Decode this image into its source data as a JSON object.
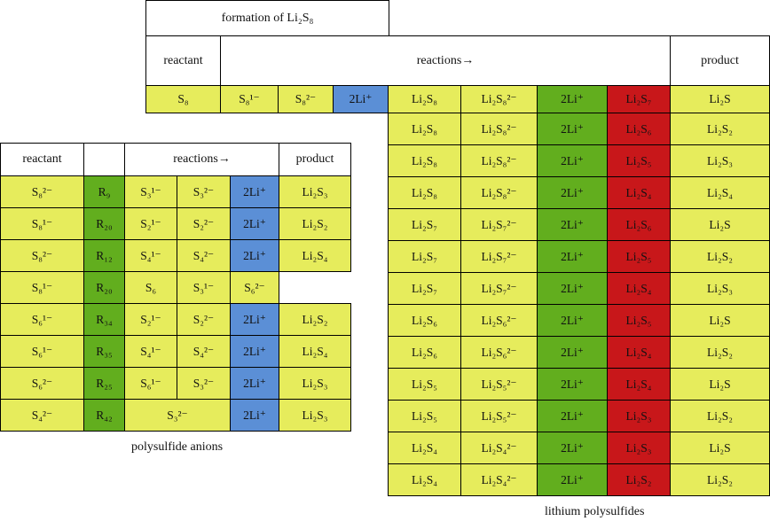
{
  "right_table": {
    "title": "formation of Li₂S₈",
    "headers": {
      "reactant": "reactant",
      "reactions": "reactions→",
      "product": "product"
    },
    "first_row": {
      "reactant": "S₈",
      "r1": "S₈¹⁻",
      "r2": "S₈²⁻",
      "r3": "2Li⁺",
      "r4": "Li₂S₈",
      "r5": "Li₂S₈²⁻",
      "r6": "2Li⁺",
      "r7": "Li₂S₇",
      "product": "Li₂S"
    },
    "rows": [
      {
        "c1": "Li₂S₈",
        "c2": "Li₂S₈²⁻",
        "c3": "2Li⁺",
        "c4": "Li₂S₆",
        "product": "Li₂S₂"
      },
      {
        "c1": "Li₂S₈",
        "c2": "Li₂S₈²⁻",
        "c3": "2Li⁺",
        "c4": "Li₂S₅",
        "product": "Li₂S₃"
      },
      {
        "c1": "Li₂S₈",
        "c2": "Li₂S₈²⁻",
        "c3": "2Li⁺",
        "c4": "Li₂S₄",
        "product": "Li₂S₄"
      },
      {
        "c1": "Li₂S₇",
        "c2": "Li₂S₇²⁻",
        "c3": "2Li⁺",
        "c4": "Li₂S₆",
        "product": "Li₂S"
      },
      {
        "c1": "Li₂S₇",
        "c2": "Li₂S₇²⁻",
        "c3": "2Li⁺",
        "c4": "Li₂S₅",
        "product": "Li₂S₂"
      },
      {
        "c1": "Li₂S₇",
        "c2": "Li₂S₇²⁻",
        "c3": "2Li⁺",
        "c4": "Li₂S₄",
        "product": "Li₂S₃"
      },
      {
        "c1": "Li₂S₆",
        "c2": "Li₂S₆²⁻",
        "c3": "2Li⁺",
        "c4": "Li₂S₅",
        "product": "Li₂S"
      },
      {
        "c1": "Li₂S₆",
        "c2": "Li₂S₆²⁻",
        "c3": "2Li⁺",
        "c4": "Li₂S₄",
        "product": "Li₂S₂"
      },
      {
        "c1": "Li₂S₅",
        "c2": "Li₂S₅²⁻",
        "c3": "2Li⁺",
        "c4": "Li₂S₄",
        "product": "Li₂S"
      },
      {
        "c1": "Li₂S₅",
        "c2": "Li₂S₅²⁻",
        "c3": "2Li⁺",
        "c4": "Li₂S₃",
        "product": "Li₂S₂"
      },
      {
        "c1": "Li₂S₄",
        "c2": "Li₂S₄²⁻",
        "c3": "2Li⁺",
        "c4": "Li₂S₃",
        "product": "Li₂S"
      },
      {
        "c1": "Li₂S₄",
        "c2": "Li₂S₄²⁻",
        "c3": "2Li⁺",
        "c4": "Li₂S₂",
        "product": "Li₂S₂"
      }
    ],
    "caption": "lithium polysulfides"
  },
  "left_table": {
    "headers": {
      "reactant": "reactant",
      "reactions": "reactions→",
      "product": "product"
    },
    "rows": [
      {
        "reactant": "S₈²⁻",
        "id": "R₉",
        "r1": "S₃¹⁻",
        "r2": "S₃²⁻",
        "r3": "2Li⁺",
        "product": "Li₂S₃"
      },
      {
        "reactant": "S₈¹⁻",
        "id": "R₂₀",
        "r1": "S₂¹⁻",
        "r2": "S₂²⁻",
        "r3": "2Li⁺",
        "product": "Li₂S₂"
      },
      {
        "reactant": "S₈²⁻",
        "id": "R₁₂",
        "r1": "S₄¹⁻",
        "r2": "S₄²⁻",
        "r3": "2Li⁺",
        "product": "Li₂S₄"
      },
      {
        "reactant": "S₈¹⁻",
        "id": "R₂₀",
        "r1": "S₆",
        "r2": "S₃¹⁻",
        "r3": "S₆²⁻",
        "product": ""
      },
      {
        "reactant": "S₆¹⁻",
        "id": "R₃₄",
        "r1": "S₂¹⁻",
        "r2": "S₂²⁻",
        "r3": "2Li⁺",
        "product": "Li₂S₂"
      },
      {
        "reactant": "S₆¹⁻",
        "id": "R₃₅",
        "r1": "S₄¹⁻",
        "r2": "S₄²⁻",
        "r3": "2Li⁺",
        "product": "Li₂S₄"
      },
      {
        "reactant": "S₆²⁻",
        "id": "R₂₅",
        "r1": "S₆¹⁻",
        "r2": "S₃²⁻",
        "r3": "2Li⁺",
        "product": "Li₂S₃"
      },
      {
        "reactant": "S₄²⁻",
        "id": "R₄₂",
        "r1": "S₃²⁻",
        "r2": "",
        "r3": "2Li⁺",
        "product": "Li₂S₃"
      }
    ],
    "caption": "polysulfide anions"
  }
}
